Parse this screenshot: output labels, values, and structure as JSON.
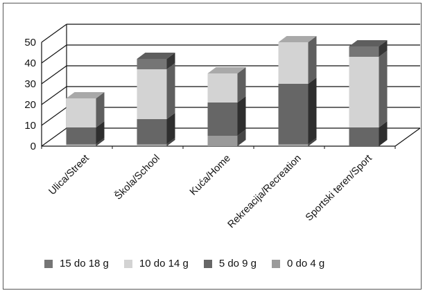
{
  "chart_data": {
    "type": "bar",
    "stacked": true,
    "three_d": true,
    "categories": [
      "Ulica/Street",
      "Škola/School",
      "Kuća/Home",
      "Rekreacija/Recreation",
      "Sportski teren/Sport"
    ],
    "series": [
      {
        "name": "0 do 4 g",
        "color": "#9a9a9a",
        "values": [
          1,
          1,
          5,
          1,
          0
        ]
      },
      {
        "name": "5 do 9 g",
        "color": "#666666",
        "values": [
          8,
          12,
          16,
          29,
          9
        ]
      },
      {
        "name": "10 do 14 g",
        "color": "#d3d3d3",
        "values": [
          14,
          24,
          14,
          20,
          34
        ]
      },
      {
        "name": "15 do 18 g",
        "color": "#757575",
        "values": [
          0,
          5,
          0,
          0,
          5
        ]
      }
    ],
    "ylim": [
      0,
      50
    ],
    "yticks": [
      "0",
      "10",
      "20",
      "30",
      "40",
      "50"
    ],
    "grid": true,
    "legend_position": "bottom",
    "legend_order": [
      "15 do 18 g",
      "10 do 14 g",
      "5 do 9 g",
      "0 do 4 g"
    ]
  }
}
